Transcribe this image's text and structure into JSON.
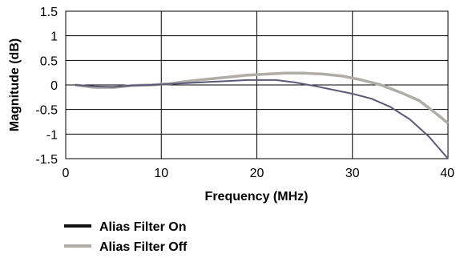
{
  "chart_data": {
    "type": "line",
    "title": "",
    "xlabel": "Frequency (MHz)",
    "ylabel": "Magnitude (dB)",
    "xlim": [
      0,
      40
    ],
    "ylim": [
      -1.5,
      1.5
    ],
    "x_ticks": [
      "0",
      "10",
      "20",
      "30",
      "40"
    ],
    "y_ticks": [
      "1.5",
      "1",
      "0.5",
      "0",
      "-0.5",
      "-1",
      "-1.5"
    ],
    "grid": true,
    "legend_position": "bottom-left",
    "series": [
      {
        "name": "Alias Filter On",
        "color": "#5a5a78",
        "legend_color": "#111111",
        "x": [
          1,
          3,
          5,
          7,
          9,
          11,
          13,
          15,
          17,
          19,
          21,
          22,
          24,
          26,
          28,
          30,
          32,
          34,
          36,
          38,
          40
        ],
        "y": [
          0.0,
          -0.03,
          -0.04,
          -0.01,
          0.0,
          0.02,
          0.04,
          0.06,
          0.08,
          0.1,
          0.1,
          0.1,
          0.05,
          -0.02,
          -0.1,
          -0.18,
          -0.28,
          -0.45,
          -0.7,
          -1.05,
          -1.5
        ]
      },
      {
        "name": "Alias Filter Off",
        "color": "#b0ada8",
        "legend_color": "#b0ada8",
        "x": [
          1,
          3,
          5,
          7,
          9,
          11,
          13,
          15,
          17,
          19,
          21,
          23,
          25,
          27,
          29,
          31,
          33,
          35,
          37,
          39,
          40
        ],
        "y": [
          0.0,
          -0.05,
          -0.05,
          -0.01,
          0.0,
          0.03,
          0.08,
          0.12,
          0.16,
          0.2,
          0.22,
          0.24,
          0.24,
          0.22,
          0.18,
          0.1,
          0.0,
          -0.15,
          -0.32,
          -0.62,
          -0.78
        ]
      }
    ]
  }
}
